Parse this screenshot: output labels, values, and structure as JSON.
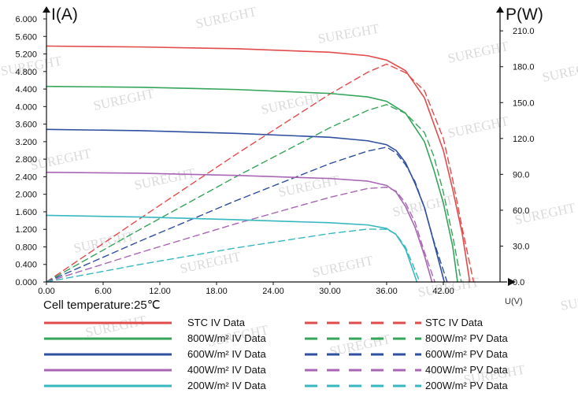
{
  "chart_data": {
    "type": "line",
    "left_axis": {
      "label": "I(A)",
      "min": 0,
      "max": 6,
      "ticks": [
        "0.000",
        "0.400",
        "0.800",
        "1.200",
        "1.600",
        "2.000",
        "2.400",
        "2.800",
        "3.200",
        "3.600",
        "4.000",
        "4.400",
        "4.800",
        "5.200",
        "5.600",
        "6.000"
      ],
      "tick_values": [
        0,
        0.4,
        0.8,
        1.2,
        1.6,
        2.0,
        2.4,
        2.8,
        3.2,
        3.6,
        4.0,
        4.4,
        4.8,
        5.2,
        5.6,
        6.0
      ]
    },
    "right_axis": {
      "label": "P(W)",
      "min": 0,
      "max": 220,
      "ticks": [
        "0.0",
        "30.0",
        "60.0",
        "90.0",
        "120.0",
        "150.0",
        "180.0",
        "210.0"
      ],
      "tick_values": [
        0,
        30,
        60,
        90,
        120,
        150,
        180,
        210
      ]
    },
    "x_axis": {
      "label": "U(V)",
      "min": 0,
      "max": 48,
      "ticks": [
        "0.00",
        "6.00",
        "12.00",
        "18.00",
        "24.00",
        "30.00",
        "36.00",
        "42.00"
      ],
      "tick_values": [
        0,
        6,
        12,
        18,
        24,
        30,
        36,
        42
      ]
    },
    "annotation": "Cell temperature:25℃",
    "series": [
      {
        "name": "STC IV Data",
        "pv_name": "STC IV Data",
        "color": "#e24b4b",
        "isc": 5.38,
        "voc": 44.8,
        "iv": [
          [
            0,
            5.38
          ],
          [
            10,
            5.36
          ],
          [
            20,
            5.32
          ],
          [
            30,
            5.24
          ],
          [
            34,
            5.16
          ],
          [
            36,
            5.06
          ],
          [
            38,
            4.82
          ],
          [
            40,
            4.2
          ],
          [
            42,
            3.0
          ],
          [
            43,
            2.1
          ],
          [
            44,
            1.1
          ],
          [
            44.8,
            0
          ]
        ],
        "pv": [
          [
            0,
            0
          ],
          [
            10,
            53.6
          ],
          [
            20,
            106.4
          ],
          [
            30,
            157.2
          ],
          [
            34,
            175.4
          ],
          [
            36,
            182.2
          ],
          [
            38,
            175.0
          ],
          [
            40,
            160.0
          ],
          [
            41,
            140.0
          ],
          [
            42,
            120.0
          ],
          [
            43,
            85.0
          ],
          [
            44,
            45.0
          ],
          [
            45.2,
            0
          ]
        ]
      },
      {
        "name": "800W/m² IV Data",
        "pv_name": "800W/m² PV Data",
        "color": "#35a55a",
        "isc": 4.46,
        "voc": 43.5,
        "iv": [
          [
            0,
            4.46
          ],
          [
            10,
            4.44
          ],
          [
            20,
            4.39
          ],
          [
            30,
            4.3
          ],
          [
            34,
            4.22
          ],
          [
            36,
            4.12
          ],
          [
            38,
            3.85
          ],
          [
            40,
            3.2
          ],
          [
            41,
            2.55
          ],
          [
            42,
            1.8
          ],
          [
            43,
            0.8
          ],
          [
            43.5,
            0
          ]
        ],
        "pv": [
          [
            0,
            0
          ],
          [
            10,
            44.4
          ],
          [
            20,
            87.8
          ],
          [
            30,
            129
          ],
          [
            34,
            143.5
          ],
          [
            36,
            148.3
          ],
          [
            38,
            141.0
          ],
          [
            40,
            125.0
          ],
          [
            41,
            105.0
          ],
          [
            42,
            75.0
          ],
          [
            43,
            38.0
          ],
          [
            43.9,
            0
          ]
        ]
      },
      {
        "name": "600W/m² IV Data",
        "pv_name": "600W/m² PV Data",
        "color": "#2f4f9f",
        "isc": 3.48,
        "voc": 42.1,
        "iv": [
          [
            0,
            3.48
          ],
          [
            10,
            3.45
          ],
          [
            20,
            3.39
          ],
          [
            30,
            3.3
          ],
          [
            34,
            3.22
          ],
          [
            36,
            3.13
          ],
          [
            37,
            3.0
          ],
          [
            38,
            2.72
          ],
          [
            39,
            2.25
          ],
          [
            40,
            1.7
          ],
          [
            41,
            0.9
          ],
          [
            42.1,
            0
          ]
        ],
        "pv": [
          [
            0,
            0
          ],
          [
            10,
            34.5
          ],
          [
            20,
            67.8
          ],
          [
            30,
            99
          ],
          [
            34,
            109.5
          ],
          [
            36,
            112.7
          ],
          [
            37,
            108.0
          ],
          [
            38,
            98.0
          ],
          [
            39,
            84.0
          ],
          [
            40,
            62.0
          ],
          [
            41,
            34.0
          ],
          [
            42.4,
            0
          ]
        ]
      },
      {
        "name": "400W/m² IV Data",
        "pv_name": "400W/m² PV Data",
        "color": "#a866b4",
        "isc": 2.5,
        "voc": 40.8,
        "iv": [
          [
            0,
            2.5
          ],
          [
            10,
            2.48
          ],
          [
            20,
            2.43
          ],
          [
            30,
            2.36
          ],
          [
            34,
            2.3
          ],
          [
            36,
            2.2
          ],
          [
            37,
            2.05
          ],
          [
            38,
            1.72
          ],
          [
            39,
            1.25
          ],
          [
            40,
            0.6
          ],
          [
            40.8,
            0
          ]
        ],
        "pv": [
          [
            0,
            0
          ],
          [
            10,
            24.8
          ],
          [
            20,
            48.6
          ],
          [
            30,
            70.8
          ],
          [
            34,
            78.2
          ],
          [
            36,
            79.2
          ],
          [
            37,
            76.0
          ],
          [
            38,
            66.0
          ],
          [
            39,
            50.0
          ],
          [
            40,
            25.0
          ],
          [
            41.1,
            0
          ]
        ]
      },
      {
        "name": "200W/m² IV Data",
        "pv_name": "200W/m² PV Data",
        "color": "#37b7bf",
        "isc": 1.52,
        "voc": 39.2,
        "iv": [
          [
            0,
            1.52
          ],
          [
            10,
            1.48
          ],
          [
            20,
            1.42
          ],
          [
            30,
            1.35
          ],
          [
            34,
            1.3
          ],
          [
            36,
            1.22
          ],
          [
            37,
            1.08
          ],
          [
            38,
            0.75
          ],
          [
            38.6,
            0.38
          ],
          [
            39.2,
            0
          ]
        ],
        "pv": [
          [
            0,
            0
          ],
          [
            10,
            14.8
          ],
          [
            20,
            28.4
          ],
          [
            30,
            40.5
          ],
          [
            34,
            44.2
          ],
          [
            36,
            44.0
          ],
          [
            37,
            40.0
          ],
          [
            38,
            29.0
          ],
          [
            38.8,
            14.0
          ],
          [
            39.5,
            0
          ]
        ]
      }
    ],
    "legend": [
      {
        "solid": "STC IV Data",
        "dashed": "STC IV Data",
        "color": "#e24b4b"
      },
      {
        "solid": "800W/m²  IV Data",
        "dashed": "800W/m²  PV Data",
        "color": "#35a55a"
      },
      {
        "solid": "600W/m²  IV Data",
        "dashed": "600W/m²  PV Data",
        "color": "#2f4f9f"
      },
      {
        "solid": "400W/m²  IV Data",
        "dashed": "400W/m²  PV Data",
        "color": "#a866b4"
      },
      {
        "solid": "200W/m²  IV Data",
        "dashed": "200W/m²  PV Data",
        "color": "#37b7bf"
      }
    ],
    "watermark_text": "SUREGHT"
  }
}
